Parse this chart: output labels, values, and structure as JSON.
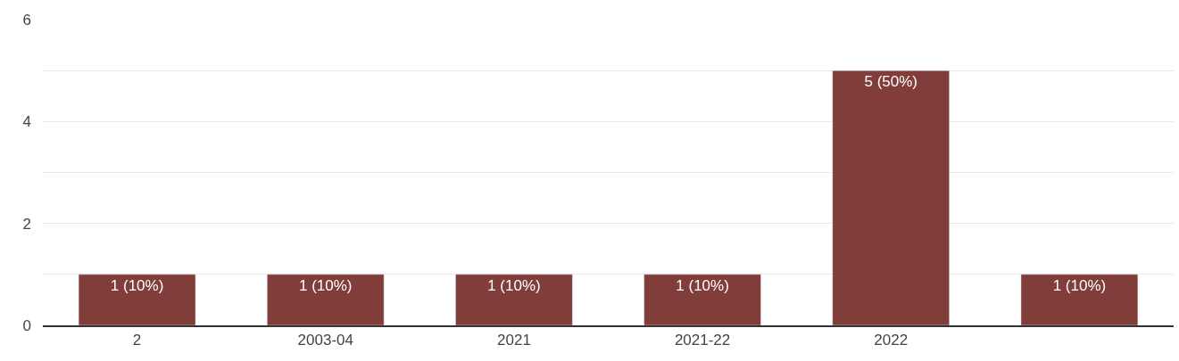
{
  "chart_data": {
    "type": "bar",
    "categories": [
      "2",
      "2003-04",
      "2021",
      "2021-22",
      "2022",
      null
    ],
    "values": [
      1,
      1,
      1,
      1,
      5,
      1
    ],
    "value_labels": [
      "1 (10%)",
      "1 (10%)",
      "1 (10%)",
      "1 (10%)",
      "5 (50%)",
      "1 (10%)"
    ],
    "color": "#813d3a",
    "ylim": [
      0,
      6
    ],
    "yticks": [
      0,
      {
        "value": 1,
        "label": null
      },
      2,
      {
        "value": 3,
        "label": null
      },
      4,
      {
        "value": 5,
        "label": null
      },
      6
    ],
    "grid": "y"
  }
}
